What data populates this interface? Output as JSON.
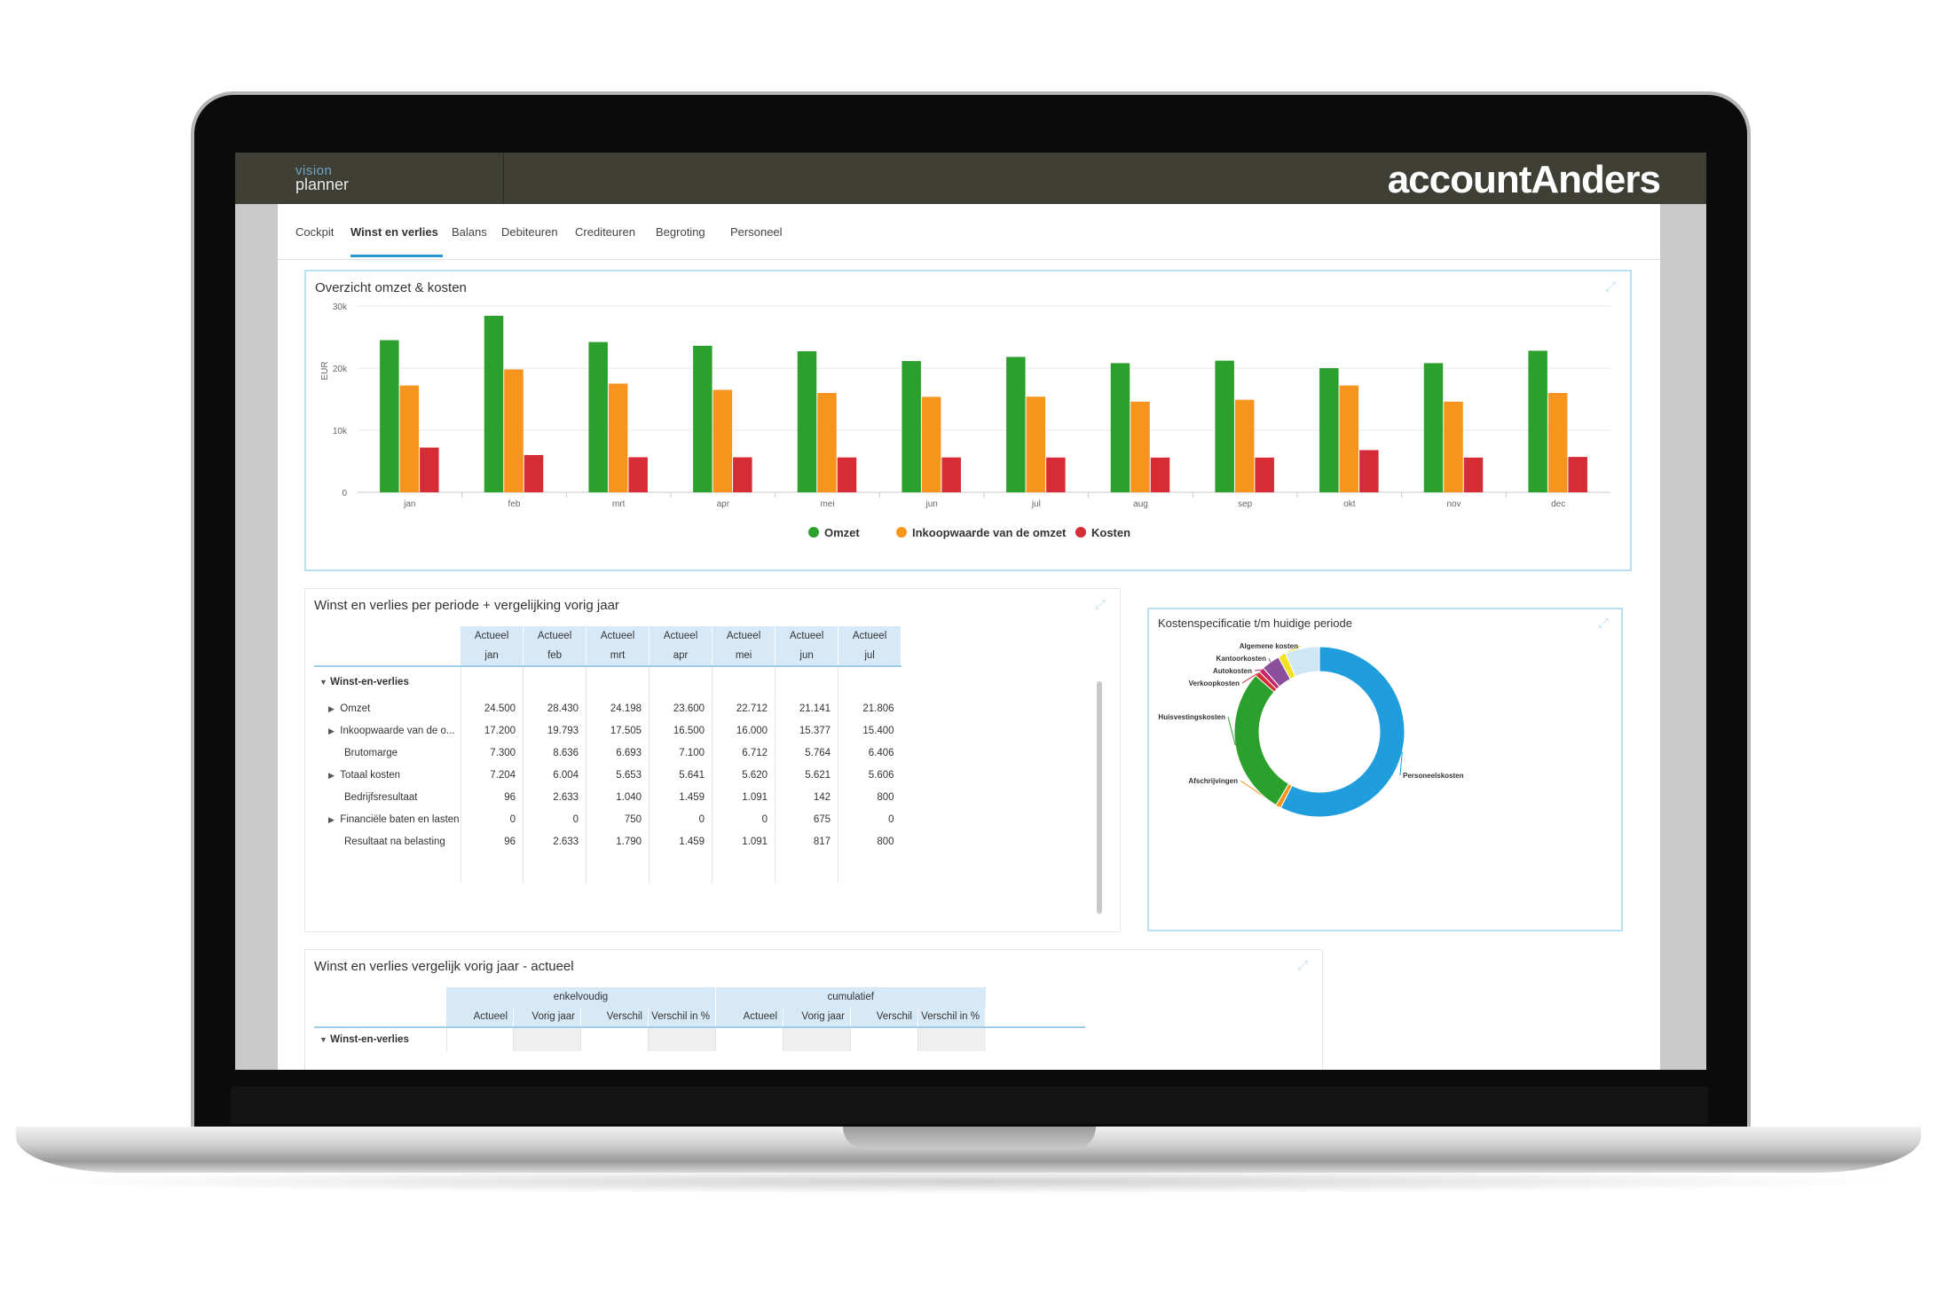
{
  "app": {
    "brand_line1": "vision",
    "brand_line2": "planner",
    "logo": "accountAnders"
  },
  "tabs": [
    {
      "label": "Cockpit",
      "active": false
    },
    {
      "label": "Winst en verlies",
      "active": true
    },
    {
      "label": "Balans",
      "active": false
    },
    {
      "label": "Debiteuren",
      "active": false
    },
    {
      "label": "Crediteuren",
      "active": false
    },
    {
      "label": "Begroting",
      "active": false
    },
    {
      "label": "Personeel",
      "active": false
    }
  ],
  "overview": {
    "title": "Overzicht omzet & kosten",
    "expand_icon": "expand-icon",
    "chart_data": {
      "type": "bar",
      "categories": [
        "jan",
        "feb",
        "mrt",
        "apr",
        "mei",
        "jun",
        "jul",
        "aug",
        "sep",
        "okt",
        "nov",
        "dec"
      ],
      "series": [
        {
          "name": "Omzet",
          "color": "#2ca02c",
          "values": [
            24500,
            28430,
            24198,
            23600,
            22712,
            21141,
            21806,
            20800,
            21200,
            20000,
            20800,
            22800
          ]
        },
        {
          "name": "Inkoopwaarde van de omzet",
          "color": "#f7941e",
          "values": [
            17200,
            19793,
            17505,
            16500,
            16000,
            15377,
            15400,
            14600,
            14900,
            17200,
            14600,
            16000
          ]
        },
        {
          "name": "Kosten",
          "color": "#d62c36",
          "values": [
            7204,
            6004,
            5653,
            5641,
            5620,
            5621,
            5606,
            5600,
            5600,
            6800,
            5600,
            5700
          ]
        }
      ],
      "ylabel": "EUR",
      "yticks": [
        "0",
        "10k",
        "20k",
        "30k"
      ],
      "ylim": [
        0,
        30000
      ],
      "grid": true,
      "legend": "bottom-center"
    }
  },
  "wv_table": {
    "title": "Winst en verlies per periode + vergelijking vorig jaar",
    "header_top": [
      "Actueel",
      "Actueel",
      "Actueel",
      "Actueel",
      "Actueel",
      "Actueel",
      "Actueel"
    ],
    "header_months": [
      "jan",
      "feb",
      "mrt",
      "apr",
      "mei",
      "jun",
      "jul"
    ],
    "group_label": "Winst-en-verlies",
    "rows": [
      {
        "label": "Omzet",
        "expandable": true,
        "values": [
          "24.500",
          "28.430",
          "24.198",
          "23.600",
          "22.712",
          "21.141",
          "21.806"
        ]
      },
      {
        "label": "Inkoopwaarde van de o...",
        "expandable": true,
        "values": [
          "17.200",
          "19.793",
          "17.505",
          "16.500",
          "16.000",
          "15.377",
          "15.400"
        ]
      },
      {
        "label": "Brutomarge",
        "expandable": false,
        "values": [
          "7.300",
          "8.636",
          "6.693",
          "7.100",
          "6.712",
          "5.764",
          "6.406"
        ]
      },
      {
        "label": "Totaal kosten",
        "expandable": true,
        "values": [
          "7.204",
          "6.004",
          "5.653",
          "5.641",
          "5.620",
          "5.621",
          "5.606"
        ]
      },
      {
        "label": "Bedrijfsresultaat",
        "expandable": false,
        "values": [
          "96",
          "2.633",
          "1.040",
          "1.459",
          "1.091",
          "142",
          "800"
        ]
      },
      {
        "label": "Financiële baten en lasten",
        "expandable": true,
        "values": [
          "0",
          "0",
          "750",
          "0",
          "0",
          "675",
          "0"
        ]
      },
      {
        "label": "Resultaat na belasting",
        "expandable": false,
        "values": [
          "96",
          "2.633",
          "1.790",
          "1.459",
          "1.091",
          "817",
          "800"
        ]
      }
    ]
  },
  "kosten": {
    "title": "Kostenspecificatie t/m huidige periode",
    "chart_data": {
      "type": "pie",
      "donut": true,
      "slices": [
        {
          "label": "Personeelskosten",
          "value": 57.5,
          "color": "#1f9ddc"
        },
        {
          "label": "Afschrijvingen",
          "value": 1.0,
          "color": "#f7941e"
        },
        {
          "label": "Huisvestingskosten",
          "value": 28.0,
          "color": "#2ca02c"
        },
        {
          "label": "Verkoopkosten",
          "value": 1.0,
          "color": "#d62c36"
        },
        {
          "label": "Autokosten",
          "value": 1.0,
          "color": "#c6266a"
        },
        {
          "label": "Kantoorkosten",
          "value": 3.5,
          "color": "#8c4f9c"
        },
        {
          "label": "Algemene kosten",
          "value": 1.5,
          "color": "#f2e21f"
        },
        {
          "label": "",
          "value": 6.5,
          "color": "#cfe7f5"
        }
      ],
      "legend": "labels-outside"
    }
  },
  "compare": {
    "title": "Winst en verlies vergelijk vorig jaar - actueel",
    "group1": "enkelvoudig",
    "group2": "cumulatief",
    "cols": [
      "Actueel",
      "Vorig jaar",
      "Verschil",
      "Verschil in %",
      "Actueel",
      "Vorig jaar",
      "Verschil",
      "Verschil in %"
    ],
    "group_label": "Winst-en-verlies"
  }
}
